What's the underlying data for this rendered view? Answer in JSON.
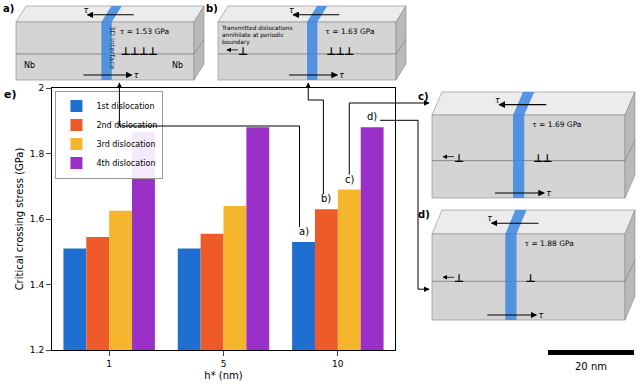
{
  "chart_data": {
    "type": "bar",
    "x_label": "h* (nm)",
    "y_label": "Critical crossing stress (GPa)",
    "categories": [
      "1",
      "5",
      "10"
    ],
    "series": [
      {
        "name": "1st dislocation",
        "color": "#1f6fd0",
        "values": [
          1.51,
          1.51,
          1.53
        ]
      },
      {
        "name": "2nd dislocation",
        "color": "#ee5a2a",
        "values": [
          1.545,
          1.555,
          1.63
        ]
      },
      {
        "name": "3rd dislocation",
        "color": "#f5b52c",
        "values": [
          1.625,
          1.64,
          1.69
        ]
      },
      {
        "name": "4th dislocation",
        "color": "#9b30c8",
        "values": [
          1.865,
          1.88,
          1.88
        ]
      }
    ],
    "ylim": [
      1.2,
      2.0
    ],
    "yticks": [
      1.2,
      1.4,
      1.6,
      1.8,
      2
    ],
    "grid": false,
    "legend": "upper left",
    "annotations": [
      {
        "text": "a)",
        "category": "10",
        "series": "1st dislocation"
      },
      {
        "text": "b)",
        "category": "10",
        "series": "2nd dislocation"
      },
      {
        "text": "c)",
        "category": "10",
        "series": "3rd dislocation"
      },
      {
        "text": "d)",
        "category": "10",
        "series": "4th dislocation"
      }
    ]
  },
  "panel_label": "e)",
  "stress_symbol": "τ",
  "dislocation_symbol": "⊥",
  "scale_bar": "20 nm",
  "diagrams": [
    {
      "label": "a)",
      "stress": "τ = 1.53 GPa",
      "dislocations_left": 0,
      "dislocations_right": 4,
      "interface_label": "3D interface",
      "materials": [
        "Nb",
        "Nb"
      ]
    },
    {
      "label": "b)",
      "stress": "τ = 1.63 GPa",
      "dislocations_left": 1,
      "dislocations_right": 3,
      "note": "Transmitted dislocations annihilate at periodic boundary"
    },
    {
      "label": "c)",
      "stress": "τ = 1.69 GPa",
      "dislocations_left": 1,
      "dislocations_right": 2
    },
    {
      "label": "d)",
      "stress": "τ = 1.88 GPa",
      "dislocations_left": 1,
      "dislocations_right": 1
    }
  ]
}
